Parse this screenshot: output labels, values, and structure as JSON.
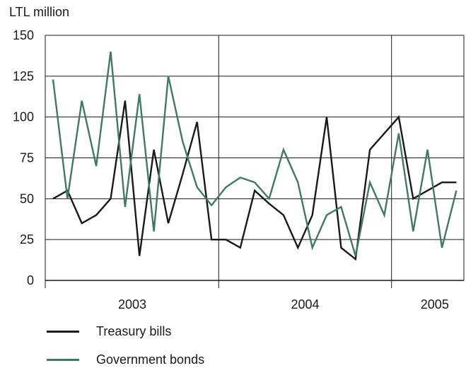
{
  "chart_data": {
    "type": "line",
    "title": "",
    "ylabel": "LTL million",
    "xlabel": "",
    "ylim": [
      0,
      150
    ],
    "yticks": [
      0,
      25,
      50,
      75,
      100,
      125,
      150
    ],
    "x_start": "2003-01",
    "x_end": "2005-06",
    "year_labels": [
      {
        "label": "2003",
        "from": "2003-01",
        "to": "2003-12"
      },
      {
        "label": "2004",
        "from": "2004-01",
        "to": "2004-12"
      },
      {
        "label": "2005",
        "from": "2005-01",
        "to": "2005-06"
      }
    ],
    "x": [
      "2003-01",
      "2003-02",
      "2003-03",
      "2003-04",
      "2003-05",
      "2003-06",
      "2003-07",
      "2003-08",
      "2003-09",
      "2003-10",
      "2003-11",
      "2003-12",
      "2004-01",
      "2004-02",
      "2004-03",
      "2004-04",
      "2004-05",
      "2004-06",
      "2004-07",
      "2004-08",
      "2004-09",
      "2004-10",
      "2004-11",
      "2004-12",
      "2005-01",
      "2005-02",
      "2005-03",
      "2005-04",
      "2005-05",
      "2005-06"
    ],
    "grid": "horizontal",
    "legend_position": "bottom",
    "series": [
      {
        "name": "Treasury bills",
        "color": "#1a1a1a",
        "values": [
          50,
          55,
          35,
          40,
          50,
          110,
          15,
          80,
          35,
          65,
          97,
          25,
          25,
          20,
          55,
          47,
          40,
          20,
          40,
          100,
          20,
          13,
          80,
          90,
          100,
          50,
          55,
          60,
          60,
          null
        ]
      },
      {
        "name": "Government bonds",
        "color": "#3f7a63",
        "values": [
          123,
          50,
          110,
          70,
          140,
          45,
          114,
          30,
          125,
          85,
          57,
          46,
          57,
          63,
          60,
          50,
          80,
          60,
          20,
          40,
          45,
          15,
          60,
          40,
          90,
          30,
          80,
          20,
          55,
          null
        ]
      }
    ]
  }
}
